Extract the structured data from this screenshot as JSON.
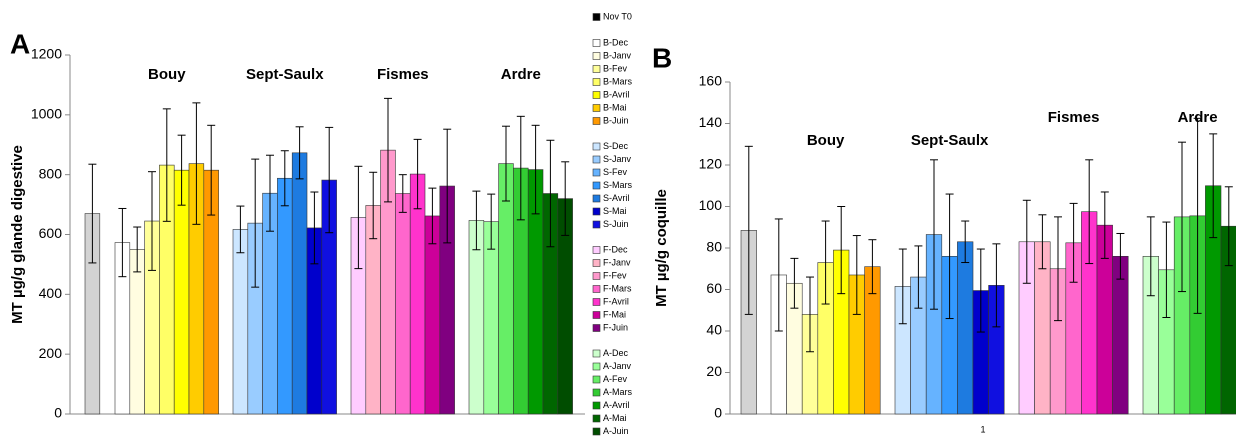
{
  "chart_data": [
    {
      "type": "bar",
      "panel_label": "A",
      "y_label": "MT µg/g glande digestive",
      "categories": [
        "Nov T0",
        "B-Dec",
        "B-Janv",
        "B-Fev",
        "B-Mars",
        "B-Avril",
        "B-Mai",
        "B-Juin",
        "S-Dec",
        "S-Janv",
        "S-Fev",
        "S-Mars",
        "S-Avril",
        "S-Mai",
        "S-Juin",
        "F-Dec",
        "F-Janv",
        "F-Fev",
        "F-Mars",
        "F-Avril",
        "F-Mai",
        "F-Juin",
        "A-Dec",
        "A-Janv",
        "A-Fev",
        "A-Mars",
        "A-Avril",
        "A-Mai",
        "A-Juin"
      ],
      "colors": [
        "#d3d3d3",
        "#ffffff",
        "#fffde0",
        "#ffff99",
        "#ffff66",
        "#ffff00",
        "#ffcc00",
        "#ff9900",
        "#cce6ff",
        "#99ccff",
        "#66b3ff",
        "#3399ff",
        "#1e7be0",
        "#0000cc",
        "#1010e0",
        "#ffccff",
        "#ffb3c6",
        "#ff99cc",
        "#ff66cc",
        "#ff33cc",
        "#cc0099",
        "#800080",
        "#ccffcc",
        "#99ff99",
        "#66ee66",
        "#33cc33",
        "#009900",
        "#006600",
        "#004d00"
      ],
      "values": [
        670,
        573,
        550,
        645,
        832,
        815,
        837,
        815,
        617,
        638,
        738,
        788,
        873,
        622,
        782,
        657,
        697,
        882,
        737,
        802,
        662,
        762,
        647,
        643,
        837,
        822,
        817,
        737,
        720
      ],
      "errors": [
        165,
        114,
        75,
        165,
        188,
        117,
        203,
        150,
        78,
        214,
        127,
        92,
        87,
        120,
        176,
        171,
        111,
        173,
        63,
        116,
        93,
        190,
        98,
        92,
        125,
        173,
        148,
        178,
        123
      ],
      "group_labels": [
        "Bouy",
        "Sept-Saulx",
        "Fismes",
        "Ardre"
      ],
      "ylim": [
        0,
        1200
      ],
      "yticks": [
        0,
        200,
        400,
        600,
        800,
        1000,
        1200
      ]
    },
    {
      "type": "bar",
      "panel_label": "B",
      "y_label": "MT µg/g coquille",
      "xtick_label": "1",
      "values": [
        88.5,
        67,
        63,
        48,
        73,
        79,
        67,
        71,
        61.5,
        66,
        86.5,
        76,
        83,
        59.5,
        62,
        83,
        83,
        70,
        82.5,
        97.5,
        91,
        76,
        76,
        69.5,
        95,
        95.5,
        110,
        90.5,
        null
      ],
      "errors": [
        40.5,
        27,
        12,
        18,
        20,
        21,
        19,
        13,
        18,
        15,
        36,
        30,
        10,
        20,
        20,
        20,
        13,
        25,
        19,
        25,
        16,
        11,
        19,
        23,
        36,
        47,
        25,
        19,
        null
      ],
      "group_labels": [
        "Bouy",
        "Sept-Saulx",
        "Fismes",
        "Ardre"
      ],
      "ylim": [
        0,
        160
      ],
      "yticks": [
        0,
        20,
        40,
        60,
        80,
        100,
        120,
        140,
        160
      ]
    }
  ]
}
